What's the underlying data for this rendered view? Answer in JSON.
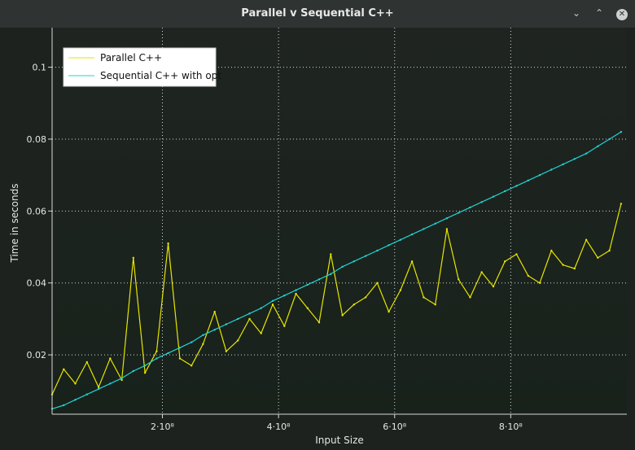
{
  "window": {
    "title": "Parallel v Sequential C++",
    "minimize_glyph": "⌄",
    "maximize_glyph": "⌃",
    "close_glyph": "✕"
  },
  "chart_data": {
    "type": "line",
    "title": "",
    "xlabel": "Input Size",
    "ylabel": "Time in seconds",
    "xlim": [
      10000000,
      1000000000
    ],
    "ylim": [
      0.0035,
      0.111
    ],
    "grid": true,
    "legend_position": "top-left",
    "x_ticks": [
      {
        "value": 200000000,
        "label": "2·10⁸"
      },
      {
        "value": 400000000,
        "label": "4·10⁸"
      },
      {
        "value": 600000000,
        "label": "6·10⁸"
      },
      {
        "value": 800000000,
        "label": "8·10⁸"
      }
    ],
    "y_ticks": [
      {
        "value": 0.02,
        "label": "0.02"
      },
      {
        "value": 0.04,
        "label": "0.04"
      },
      {
        "value": 0.06,
        "label": "0.06"
      },
      {
        "value": 0.08,
        "label": "0.08"
      },
      {
        "value": 0.1,
        "label": "0.1"
      }
    ],
    "series": [
      {
        "name": "Parallel C++",
        "color": "#e6e600",
        "x": [
          10000000,
          30000000,
          50000000,
          70000000,
          90000000,
          110000000,
          130000000,
          150000000,
          170000000,
          190000000,
          210000000,
          230000000,
          250000000,
          270000000,
          290000000,
          310000000,
          330000000,
          350000000,
          370000000,
          390000000,
          410000000,
          430000000,
          450000000,
          470000000,
          490000000,
          510000000,
          530000000,
          550000000,
          570000000,
          590000000,
          610000000,
          630000000,
          650000000,
          670000000,
          690000000,
          710000000,
          730000000,
          750000000,
          770000000,
          790000000,
          810000000,
          830000000,
          850000000,
          870000000,
          890000000,
          910000000,
          930000000,
          950000000,
          970000000,
          990000000
        ],
        "values": [
          0.009,
          0.016,
          0.012,
          0.018,
          0.011,
          0.019,
          0.013,
          0.047,
          0.015,
          0.021,
          0.051,
          0.019,
          0.017,
          0.023,
          0.032,
          0.021,
          0.024,
          0.03,
          0.026,
          0.034,
          0.028,
          0.037,
          0.033,
          0.029,
          0.048,
          0.031,
          0.034,
          0.036,
          0.04,
          0.032,
          0.038,
          0.046,
          0.036,
          0.034,
          0.055,
          0.041,
          0.036,
          0.043,
          0.039,
          0.046,
          0.048,
          0.042,
          0.04,
          0.049,
          0.045,
          0.044,
          0.052,
          0.047,
          0.049,
          0.062
        ]
      },
      {
        "name": "Sequential C++ with opt",
        "color": "#22d3d3",
        "x": [
          10000000,
          30000000,
          50000000,
          70000000,
          90000000,
          110000000,
          130000000,
          150000000,
          170000000,
          190000000,
          210000000,
          230000000,
          250000000,
          270000000,
          290000000,
          310000000,
          330000000,
          350000000,
          370000000,
          390000000,
          410000000,
          430000000,
          450000000,
          470000000,
          490000000,
          510000000,
          530000000,
          550000000,
          570000000,
          590000000,
          610000000,
          630000000,
          650000000,
          670000000,
          690000000,
          710000000,
          730000000,
          750000000,
          770000000,
          790000000,
          810000000,
          830000000,
          850000000,
          870000000,
          890000000,
          910000000,
          930000000,
          950000000,
          970000000,
          990000000
        ],
        "values": [
          0.005,
          0.006,
          0.0075,
          0.009,
          0.0105,
          0.012,
          0.0135,
          0.0155,
          0.017,
          0.019,
          0.0205,
          0.022,
          0.0235,
          0.0255,
          0.027,
          0.0285,
          0.03,
          0.0315,
          0.033,
          0.035,
          0.0365,
          0.038,
          0.0395,
          0.041,
          0.0425,
          0.0445,
          0.046,
          0.0475,
          0.049,
          0.0505,
          0.052,
          0.0535,
          0.055,
          0.0565,
          0.058,
          0.0595,
          0.061,
          0.0625,
          0.064,
          0.0655,
          0.067,
          0.0685,
          0.07,
          0.0715,
          0.073,
          0.0745,
          0.076,
          0.078,
          0.08,
          0.082
        ]
      }
    ]
  }
}
